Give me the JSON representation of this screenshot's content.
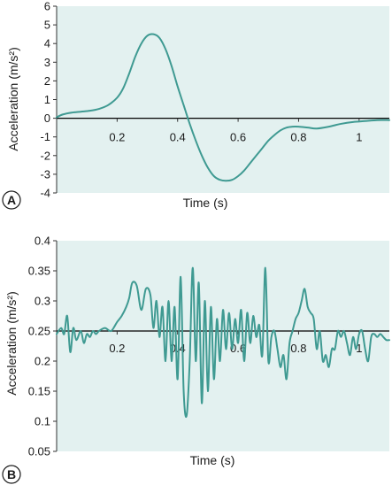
{
  "chart_data": [
    {
      "panel_label": "A",
      "type": "line",
      "xlabel": "Time (s)",
      "ylabel": "Acceleration (m/s²)",
      "xlim": [
        0,
        1.1
      ],
      "ylim": [
        -4,
        6
      ],
      "xticks": [
        0.2,
        0.4,
        0.6,
        0.8,
        1
      ],
      "xtick_labels": [
        "0.2",
        "0.4",
        "0.6",
        "0.8",
        "1"
      ],
      "yticks": [
        -4,
        -3,
        -2,
        -1,
        0,
        1,
        2,
        3,
        4,
        5,
        6
      ],
      "ytick_labels": [
        "-4",
        "-3",
        "-2",
        "-1",
        "0",
        "1",
        "2",
        "3",
        "4",
        "5",
        "6"
      ],
      "baseline": 0,
      "series": [
        {
          "color": "#3f9a92",
          "x": [
            0.0,
            0.02,
            0.05,
            0.08,
            0.11,
            0.14,
            0.17,
            0.2,
            0.22,
            0.24,
            0.26,
            0.28,
            0.3,
            0.32,
            0.34,
            0.36,
            0.38,
            0.4,
            0.42,
            0.44,
            0.46,
            0.48,
            0.5,
            0.52,
            0.54,
            0.56,
            0.58,
            0.6,
            0.62,
            0.64,
            0.66,
            0.68,
            0.7,
            0.72,
            0.74,
            0.76,
            0.78,
            0.8,
            0.83,
            0.86,
            0.9,
            0.94,
            0.98,
            1.02,
            1.06,
            1.1
          ],
          "y": [
            0.05,
            0.2,
            0.3,
            0.35,
            0.4,
            0.5,
            0.7,
            1.1,
            1.6,
            2.4,
            3.3,
            4.0,
            4.42,
            4.5,
            4.3,
            3.7,
            2.8,
            1.7,
            0.7,
            -0.3,
            -1.2,
            -2.0,
            -2.65,
            -3.1,
            -3.3,
            -3.35,
            -3.3,
            -3.1,
            -2.8,
            -2.4,
            -2.0,
            -1.6,
            -1.2,
            -0.9,
            -0.65,
            -0.5,
            -0.45,
            -0.45,
            -0.5,
            -0.55,
            -0.45,
            -0.3,
            -0.2,
            -0.15,
            -0.1,
            -0.1
          ]
        }
      ]
    },
    {
      "panel_label": "B",
      "type": "line",
      "xlabel": "Time (s)",
      "ylabel": "Acceleration (m/s²)",
      "xlim": [
        0,
        1.1
      ],
      "ylim": [
        0.05,
        0.4
      ],
      "xticks": [
        0.2,
        0.4,
        0.6,
        0.8,
        1
      ],
      "xtick_labels": [
        "0.2",
        "0.4",
        "0.6",
        "0.8",
        "1"
      ],
      "yticks": [
        0.05,
        0.1,
        0.15,
        0.2,
        0.25,
        0.3,
        0.35,
        0.4
      ],
      "ytick_labels": [
        "0.05",
        "0.1",
        "0.15",
        "0.2",
        "0.25",
        "0.3",
        "0.35",
        "0.4"
      ],
      "baseline": 0.25,
      "series": [
        {
          "color": "#3f9a92",
          "x": [
            0.0,
            0.015,
            0.025,
            0.035,
            0.045,
            0.055,
            0.065,
            0.08,
            0.09,
            0.1,
            0.11,
            0.12,
            0.13,
            0.14,
            0.16,
            0.18,
            0.2,
            0.215,
            0.23,
            0.24,
            0.25,
            0.265,
            0.28,
            0.295,
            0.31,
            0.32,
            0.33,
            0.34,
            0.35,
            0.36,
            0.37,
            0.38,
            0.39,
            0.4,
            0.41,
            0.42,
            0.43,
            0.44,
            0.45,
            0.46,
            0.47,
            0.48,
            0.49,
            0.5,
            0.51,
            0.52,
            0.53,
            0.54,
            0.55,
            0.56,
            0.57,
            0.58,
            0.59,
            0.6,
            0.61,
            0.62,
            0.63,
            0.64,
            0.65,
            0.66,
            0.67,
            0.68,
            0.69,
            0.7,
            0.71,
            0.72,
            0.73,
            0.74,
            0.75,
            0.76,
            0.77,
            0.78,
            0.79,
            0.8,
            0.81,
            0.82,
            0.83,
            0.84,
            0.85,
            0.86,
            0.87,
            0.88,
            0.89,
            0.9,
            0.91,
            0.92,
            0.93,
            0.94,
            0.95,
            0.96,
            0.97,
            0.98,
            0.99,
            1.0,
            1.01,
            1.02,
            1.03,
            1.04,
            1.05,
            1.06,
            1.07,
            1.08,
            1.09,
            1.1
          ],
          "y": [
            0.245,
            0.255,
            0.245,
            0.275,
            0.215,
            0.255,
            0.235,
            0.25,
            0.23,
            0.245,
            0.24,
            0.25,
            0.245,
            0.25,
            0.255,
            0.25,
            0.265,
            0.275,
            0.29,
            0.305,
            0.33,
            0.325,
            0.285,
            0.32,
            0.31,
            0.255,
            0.3,
            0.24,
            0.29,
            0.2,
            0.3,
            0.2,
            0.29,
            0.17,
            0.34,
            0.15,
            0.11,
            0.2,
            0.355,
            0.2,
            0.33,
            0.13,
            0.3,
            0.15,
            0.29,
            0.17,
            0.27,
            0.2,
            0.285,
            0.22,
            0.28,
            0.22,
            0.27,
            0.23,
            0.285,
            0.2,
            0.28,
            0.23,
            0.275,
            0.24,
            0.26,
            0.21,
            0.355,
            0.2,
            0.24,
            0.25,
            0.22,
            0.19,
            0.21,
            0.17,
            0.23,
            0.25,
            0.27,
            0.28,
            0.3,
            0.32,
            0.29,
            0.28,
            0.27,
            0.22,
            0.25,
            0.2,
            0.21,
            0.19,
            0.22,
            0.22,
            0.25,
            0.24,
            0.25,
            0.23,
            0.21,
            0.24,
            0.22,
            0.245,
            0.25,
            0.22,
            0.2,
            0.24,
            0.245,
            0.24,
            0.245,
            0.24,
            0.235,
            0.235
          ]
        }
      ]
    }
  ],
  "style": {
    "plot_background": "#e3f1f0",
    "line_color": "#3f9a92",
    "baseline_color": "#000000",
    "text_color": "#1a1a1a"
  }
}
